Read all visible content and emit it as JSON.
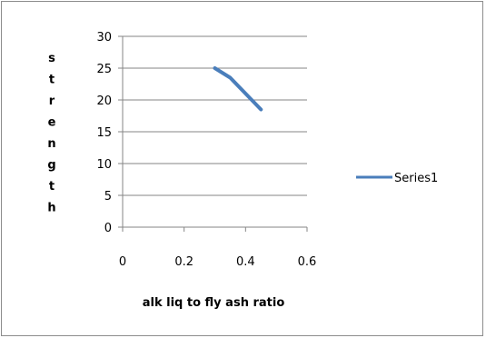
{
  "chart_data": {
    "type": "line",
    "title": "",
    "xlabel": "alk liq to fly ash ratio",
    "ylabel": "strength",
    "xlim": [
      0,
      0.6
    ],
    "ylim": [
      0,
      30
    ],
    "x_ticks": [
      0,
      0.2,
      0.4,
      0.6
    ],
    "y_ticks": [
      0,
      5,
      10,
      15,
      20,
      25,
      30
    ],
    "grid": "horizontal",
    "legend_position": "right",
    "series": [
      {
        "name": "Series1",
        "color": "#4a7ebb",
        "x": [
          0.3,
          0.35,
          0.4,
          0.45
        ],
        "y": [
          25,
          23.5,
          21,
          18.5
        ]
      }
    ]
  }
}
